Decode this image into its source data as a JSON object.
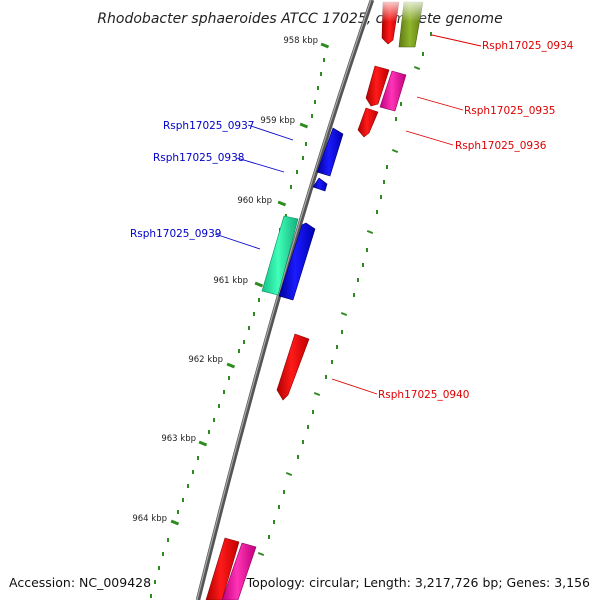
{
  "title": "Rhodobacter sphaeroides ATCC 17025, complete genome",
  "footer": {
    "accession": "Accession: NC_009428",
    "summary": "Topology: circular; Length: 3,217,726 bp; Genes: 3,156"
  },
  "colors": {
    "backbone": "#7a7a7a",
    "tick": "#2e8b1f",
    "forward_label": "#0000cc",
    "reverse_label": "#dd0000"
  },
  "position_labels": [
    "958 kbp",
    "959 kbp",
    "960 kbp",
    "961 kbp",
    "962 kbp",
    "963 kbp",
    "964 kbp"
  ],
  "gene_labels": {
    "forward": [
      "Rsph17025_0937",
      "Rsph17025_0938",
      "Rsph17025_0939"
    ],
    "reverse": [
      "Rsph17025_0934",
      "Rsph17025_0935",
      "Rsph17025_0936",
      "Rsph17025_0940"
    ]
  }
}
